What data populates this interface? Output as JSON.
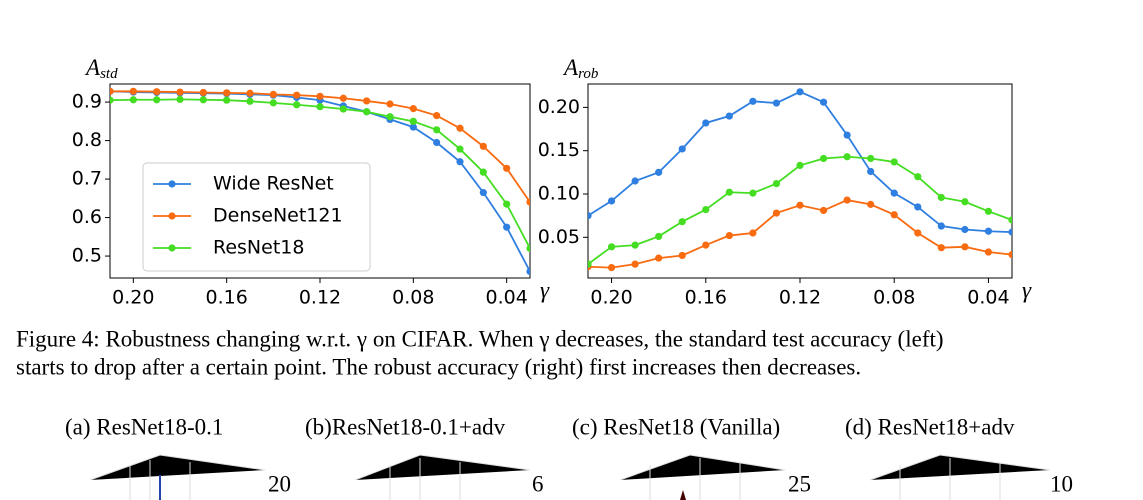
{
  "chart_data": [
    {
      "type": "line",
      "y_label": "A",
      "y_label_sub": "std",
      "x_label": "γ",
      "x": [
        0.21,
        0.2,
        0.19,
        0.18,
        0.17,
        0.16,
        0.15,
        0.14,
        0.13,
        0.12,
        0.11,
        0.1,
        0.09,
        0.08,
        0.07,
        0.06,
        0.05,
        0.04,
        0.03
      ],
      "xlim": [
        0.21,
        0.03
      ],
      "xticks": [
        {
          "value": 0.2,
          "label": "0.20"
        },
        {
          "value": 0.16,
          "label": "0.16"
        },
        {
          "value": 0.12,
          "label": "0.12"
        },
        {
          "value": 0.08,
          "label": "0.08"
        },
        {
          "value": 0.04,
          "label": "0.04"
        }
      ],
      "ylim": [
        0.443,
        0.947
      ],
      "yticks": [
        0.5,
        0.6,
        0.7,
        0.8,
        0.9
      ],
      "legend": "lower left",
      "series": [
        {
          "name": "Wide ResNet",
          "color": "#2f7fe0",
          "values": [
            0.928,
            0.926,
            0.925,
            0.924,
            0.923,
            0.922,
            0.92,
            0.918,
            0.912,
            0.905,
            0.89,
            0.875,
            0.855,
            0.835,
            0.795,
            0.745,
            0.665,
            0.575,
            0.46
          ]
        },
        {
          "name": "DenseNet121",
          "color": "#f96b10",
          "values": [
            0.928,
            0.928,
            0.927,
            0.926,
            0.925,
            0.924,
            0.923,
            0.92,
            0.918,
            0.915,
            0.91,
            0.903,
            0.895,
            0.883,
            0.865,
            0.832,
            0.785,
            0.728,
            0.64
          ]
        },
        {
          "name": "ResNet18",
          "color": "#44dd22",
          "values": [
            0.905,
            0.906,
            0.906,
            0.907,
            0.906,
            0.905,
            0.902,
            0.898,
            0.893,
            0.888,
            0.882,
            0.875,
            0.862,
            0.85,
            0.828,
            0.778,
            0.718,
            0.635,
            0.52
          ]
        }
      ]
    },
    {
      "type": "line",
      "y_label": "A",
      "y_label_sub": "rob",
      "x_label": "γ",
      "x": [
        0.21,
        0.2,
        0.19,
        0.18,
        0.17,
        0.16,
        0.15,
        0.14,
        0.13,
        0.12,
        0.11,
        0.1,
        0.09,
        0.08,
        0.07,
        0.06,
        0.05,
        0.04,
        0.03
      ],
      "xlim": [
        0.21,
        0.03
      ],
      "xticks": [
        {
          "value": 0.2,
          "label": "0.20"
        },
        {
          "value": 0.16,
          "label": "0.16"
        },
        {
          "value": 0.12,
          "label": "0.12"
        },
        {
          "value": 0.08,
          "label": "0.08"
        },
        {
          "value": 0.04,
          "label": "0.04"
        }
      ],
      "ylim": [
        0.003,
        0.227
      ],
      "yticks": [
        {
          "value": 0.05,
          "label": "0.05"
        },
        {
          "value": 0.1,
          "label": "0.10"
        },
        {
          "value": 0.15,
          "label": "0.15"
        },
        {
          "value": 0.2,
          "label": "0.20"
        }
      ],
      "series": [
        {
          "name": "Wide ResNet",
          "color": "#2f7fe0",
          "values": [
            0.075,
            0.092,
            0.115,
            0.125,
            0.152,
            0.182,
            0.19,
            0.207,
            0.205,
            0.218,
            0.206,
            0.168,
            0.126,
            0.101,
            0.085,
            0.063,
            0.059,
            0.057,
            0.056
          ]
        },
        {
          "name": "DenseNet121",
          "color": "#f96b10",
          "values": [
            0.016,
            0.015,
            0.019,
            0.026,
            0.029,
            0.041,
            0.052,
            0.055,
            0.078,
            0.087,
            0.081,
            0.093,
            0.088,
            0.076,
            0.055,
            0.038,
            0.039,
            0.033,
            0.03
          ]
        },
        {
          "name": "ResNet18",
          "color": "#44dd22",
          "values": [
            0.019,
            0.039,
            0.041,
            0.051,
            0.068,
            0.082,
            0.102,
            0.101,
            0.112,
            0.133,
            0.141,
            0.143,
            0.141,
            0.137,
            0.12,
            0.096,
            0.091,
            0.08,
            0.07
          ]
        }
      ]
    }
  ],
  "caption": [
    "Figure 4: Robustness changing w.r.t. γ on CIFAR. When γ decreases, the standard test accuracy (left)",
    "starts to drop after a certain point. The robust accuracy (right) first increases then decreases."
  ],
  "subfigures": [
    {
      "title": "(a) ResNet18-0.1",
      "tick": "20"
    },
    {
      "title": "(b)ResNet18-0.1+adv",
      "tick": "6"
    },
    {
      "title": "(c) ResNet18 (Vanilla)",
      "tick": "25"
    },
    {
      "title": "(d) ResNet18+adv",
      "tick": "10"
    }
  ]
}
